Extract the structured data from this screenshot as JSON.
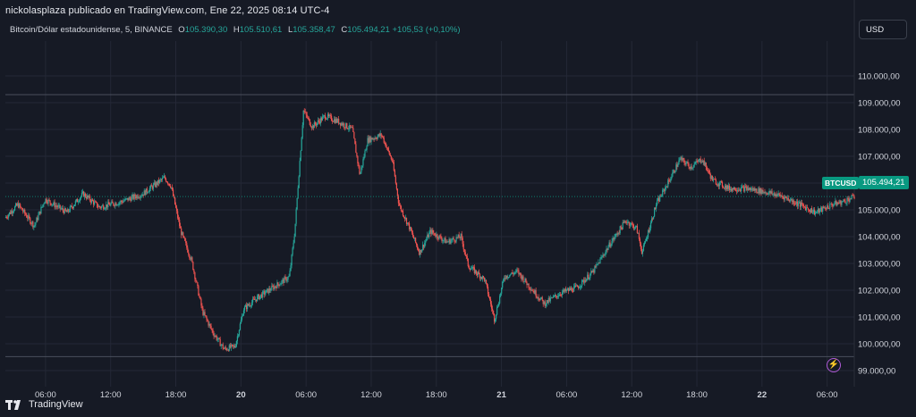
{
  "header": {
    "publisher_line": "nickolasplaza publicado en TradingView.com, Ene 22, 2025 08:14 UTC-4"
  },
  "legend": {
    "symbol": "Bitcoin/Dólar estadounidense, 5, BINANCE",
    "open_label": "O",
    "open_value": "105.390,30",
    "high_label": "H",
    "high_value": "105.510,61",
    "low_label": "L",
    "low_value": "105.358,47",
    "close_label": "C",
    "close_value": "105.494,21",
    "change": "+105,53 (+0,10%)"
  },
  "currency_button": "USD",
  "price_tag": {
    "symbol": "BTCUSD",
    "price": "105.494,21"
  },
  "footer": {
    "brand": "TradingView"
  },
  "colors": {
    "up": "#26a69a",
    "down": "#ef5350",
    "background": "#161a25",
    "grid": "#242836"
  },
  "chart_data": {
    "type": "candlestick",
    "y_axis": {
      "ticks": [
        99000,
        100000,
        101000,
        102000,
        103000,
        104000,
        105000,
        106000,
        107000,
        108000,
        109000,
        110000
      ],
      "tick_labels": [
        "99.000,00",
        "100.000,00",
        "101.000,00",
        "102.000,00",
        "103.000,00",
        "104.000,00",
        "105.000,00",
        "106.000,00",
        "107.000,00",
        "108.000,00",
        "109.000,00",
        "110.000,00"
      ],
      "range": [
        98400,
        111300
      ]
    },
    "x_axis": {
      "tick_labels": [
        "06:00",
        "12:00",
        "18:00",
        "20",
        "06:00",
        "12:00",
        "18:00",
        "21",
        "06:00",
        "12:00",
        "18:00",
        "22",
        "06:00"
      ],
      "bold_labels": [
        "20",
        "21",
        "22"
      ],
      "hours": [
        6,
        12,
        18,
        24,
        30,
        36,
        42,
        48,
        54,
        60,
        66,
        72,
        78
      ],
      "range_hours": [
        2.3,
        80.5
      ]
    },
    "horizontal_lines": [
      109300,
      99520
    ],
    "current_price": 105494.21,
    "price_path": [
      [
        2.3,
        104700
      ],
      [
        3.5,
        105200
      ],
      [
        5.0,
        104400
      ],
      [
        6.0,
        105400
      ],
      [
        8.0,
        104900
      ],
      [
        9.5,
        105600
      ],
      [
        11.0,
        105100
      ],
      [
        13.0,
        105300
      ],
      [
        15.0,
        105600
      ],
      [
        17.0,
        106200
      ],
      [
        17.6,
        105900
      ],
      [
        18.5,
        104200
      ],
      [
        19.5,
        103100
      ],
      [
        20.5,
        101200
      ],
      [
        21.5,
        100400
      ],
      [
        22.5,
        99800
      ],
      [
        23.5,
        99900
      ],
      [
        24.3,
        101300
      ],
      [
        25.5,
        101700
      ],
      [
        27.0,
        102100
      ],
      [
        28.5,
        102500
      ],
      [
        29.0,
        104200
      ],
      [
        29.8,
        108700
      ],
      [
        30.6,
        108100
      ],
      [
        31.8,
        108500
      ],
      [
        33.0,
        108300
      ],
      [
        34.3,
        108000
      ],
      [
        35.0,
        106300
      ],
      [
        35.7,
        107600
      ],
      [
        37.0,
        107800
      ],
      [
        38.0,
        106800
      ],
      [
        38.6,
        105200
      ],
      [
        39.5,
        104400
      ],
      [
        40.5,
        103400
      ],
      [
        41.5,
        104200
      ],
      [
        43.0,
        103800
      ],
      [
        44.3,
        104000
      ],
      [
        45.0,
        102900
      ],
      [
        46.5,
        102400
      ],
      [
        47.4,
        100900
      ],
      [
        48.3,
        102500
      ],
      [
        49.5,
        102700
      ],
      [
        50.5,
        102200
      ],
      [
        52.0,
        101500
      ],
      [
        53.5,
        101900
      ],
      [
        55.0,
        102100
      ],
      [
        56.5,
        102700
      ],
      [
        58.0,
        103700
      ],
      [
        59.5,
        104600
      ],
      [
        60.5,
        104300
      ],
      [
        61.0,
        103400
      ],
      [
        61.5,
        104100
      ],
      [
        62.3,
        105200
      ],
      [
        63.5,
        106100
      ],
      [
        64.5,
        106900
      ],
      [
        65.5,
        106600
      ],
      [
        66.5,
        106900
      ],
      [
        67.5,
        106100
      ],
      [
        69.0,
        105800
      ],
      [
        70.5,
        105800
      ],
      [
        72.0,
        105700
      ],
      [
        74.0,
        105500
      ],
      [
        75.5,
        105200
      ],
      [
        77.0,
        104900
      ],
      [
        78.5,
        105200
      ],
      [
        79.5,
        105300
      ],
      [
        80.5,
        105494
      ]
    ],
    "seed": 7
  }
}
